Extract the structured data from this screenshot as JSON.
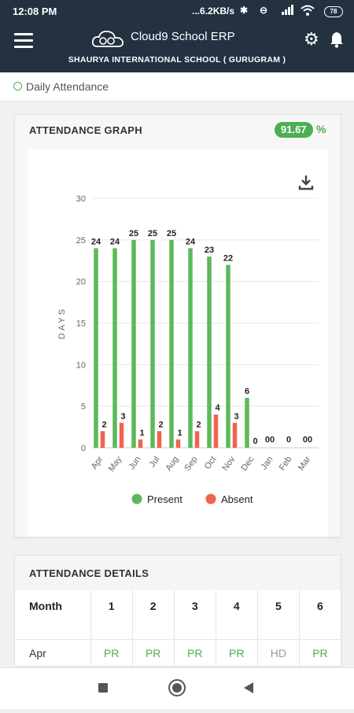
{
  "status_bar": {
    "time": "12:08 PM",
    "network_speed": "6.2KB/s",
    "battery": "78"
  },
  "header": {
    "brand": "Cloud9 School ERP",
    "school_name": "SHAURYA INTERNATIONAL SCHOOL ( GURUGRAM )"
  },
  "breadcrumb": {
    "label": "Daily Attendance"
  },
  "graph_card": {
    "title": "ATTENDANCE GRAPH",
    "percentage": "91.67",
    "percent_sign": "%"
  },
  "chart_data": {
    "type": "bar",
    "categories": [
      "Apr",
      "May",
      "Jun",
      "Jul",
      "Aug",
      "Sep",
      "Oct",
      "Nov",
      "Dec",
      "Jan",
      "Feb",
      "Mar"
    ],
    "series": [
      {
        "name": "Present",
        "color": "#5cb85c",
        "values": [
          24,
          24,
          25,
          25,
          25,
          24,
          23,
          22,
          6,
          0,
          0,
          0
        ]
      },
      {
        "name": "Absent",
        "color": "#f2624f",
        "values": [
          2,
          3,
          1,
          2,
          1,
          2,
          4,
          3,
          0,
          0,
          0,
          0
        ]
      }
    ],
    "data_labels": {
      "Apr": [
        "24",
        "2"
      ],
      "May": [
        "24",
        "3"
      ],
      "Jun": [
        "25",
        "1"
      ],
      "Jul": [
        "25",
        "2"
      ],
      "Aug": [
        "25",
        "1"
      ],
      "Sep": [
        "24",
        "2"
      ],
      "Oct": [
        "23",
        "4"
      ],
      "Nov": [
        "22",
        "3"
      ],
      "Dec": [
        "6",
        "0"
      ],
      "Jan": [
        "00"
      ],
      "Feb": [
        "0"
      ],
      "Mar": [
        "00"
      ]
    },
    "ylabel": "DAYS",
    "ylim": [
      0,
      30
    ],
    "yticks": [
      0,
      5,
      10,
      15,
      20,
      25,
      30
    ],
    "grid": true,
    "legend": "bottom"
  },
  "details_card": {
    "title": "ATTENDANCE DETAILS",
    "columns": [
      "Month",
      "1",
      "2",
      "3",
      "4",
      "5",
      "6"
    ],
    "rows": [
      {
        "month": "Apr",
        "days": [
          "PR",
          "PR",
          "PR",
          "PR",
          "HD",
          "PR"
        ]
      }
    ]
  },
  "colors": {
    "header_bg": "#233140",
    "present": "#5cb85c",
    "absent": "#f2624f",
    "accent": "#4caf50"
  }
}
